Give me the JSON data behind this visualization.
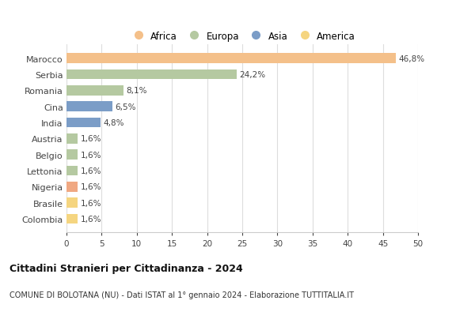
{
  "categories": [
    "Marocco",
    "Serbia",
    "Romania",
    "Cina",
    "India",
    "Austria",
    "Belgio",
    "Lettonia",
    "Nigeria",
    "Brasile",
    "Colombia"
  ],
  "values": [
    46.8,
    24.2,
    8.1,
    6.5,
    4.8,
    1.6,
    1.6,
    1.6,
    1.6,
    1.6,
    1.6
  ],
  "labels": [
    "46,8%",
    "24,2%",
    "8,1%",
    "6,5%",
    "4,8%",
    "1,6%",
    "1,6%",
    "1,6%",
    "1,6%",
    "1,6%",
    "1,6%"
  ],
  "colors": [
    "#F4C08A",
    "#B5C9A1",
    "#B5C9A1",
    "#7B9DC7",
    "#7B9DC7",
    "#B5C9A1",
    "#B5C9A1",
    "#B5C9A1",
    "#F0A882",
    "#F5D580",
    "#F5D580"
  ],
  "legend": [
    {
      "label": "Africa",
      "color": "#F4C08A"
    },
    {
      "label": "Europa",
      "color": "#B5C9A1"
    },
    {
      "label": "Asia",
      "color": "#7B9DC7"
    },
    {
      "label": "America",
      "color": "#F5D580"
    }
  ],
  "xlim": [
    0,
    50
  ],
  "xticks": [
    0,
    5,
    10,
    15,
    20,
    25,
    30,
    35,
    40,
    45,
    50
  ],
  "title": "Cittadini Stranieri per Cittadinanza - 2024",
  "subtitle": "COMUNE DI BOLOTANA (NU) - Dati ISTAT al 1° gennaio 2024 - Elaborazione TUTTITALIA.IT",
  "background_color": "#ffffff",
  "grid_color": "#dddddd"
}
